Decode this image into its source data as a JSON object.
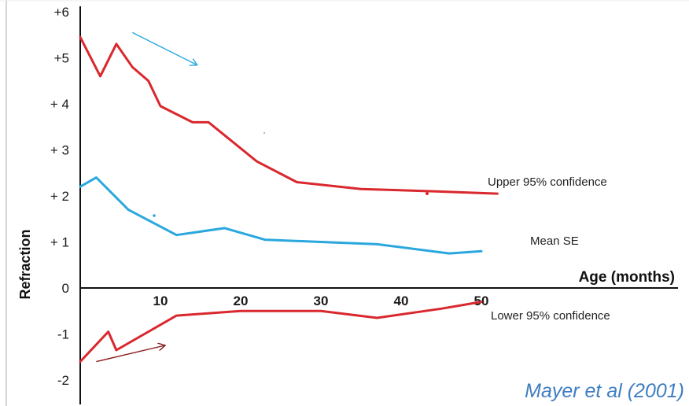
{
  "chart_data": {
    "type": "line",
    "xlabel": "Age (months)",
    "ylabel": "Refraction",
    "xlim": [
      0,
      55
    ],
    "ylim": [
      -2.3,
      6.1
    ],
    "x_ticks": [
      10,
      20,
      30,
      40,
      50
    ],
    "y_ticks": [
      {
        "value": 6,
        "label": "+6"
      },
      {
        "value": 5,
        "label": "+5"
      },
      {
        "value": 4,
        "label": "+ 4"
      },
      {
        "value": 3,
        "label": "+ 3"
      },
      {
        "value": 2,
        "label": "+ 2"
      },
      {
        "value": 1,
        "label": "+ 1"
      },
      {
        "value": 0,
        "label": "0"
      },
      {
        "value": -1,
        "label": "-1"
      },
      {
        "value": -2,
        "label": "-2"
      }
    ],
    "series": [
      {
        "name": "Upper 95% confidence",
        "color": "#d9282e",
        "x": [
          0,
          2.5,
          4.5,
          6.5,
          8.5,
          10,
          14,
          16,
          22,
          27,
          35,
          44,
          52
        ],
        "y": [
          5.45,
          4.6,
          5.3,
          4.8,
          4.5,
          3.95,
          3.6,
          3.6,
          2.75,
          2.3,
          2.15,
          2.1,
          2.05
        ]
      },
      {
        "name": "Mean SE",
        "color": "#2aa7de",
        "x": [
          0,
          2,
          6,
          12,
          18,
          23,
          30,
          37,
          46,
          50
        ],
        "y": [
          2.2,
          2.4,
          1.7,
          1.15,
          1.3,
          1.05,
          1.0,
          0.95,
          0.75,
          0.8
        ]
      },
      {
        "name": "Lower 95% confidence",
        "color": "#d9282e",
        "x": [
          0,
          3.5,
          4.5,
          12,
          20,
          30,
          37,
          45,
          50
        ],
        "y": [
          -1.6,
          -0.95,
          -1.35,
          -0.6,
          -0.5,
          -0.5,
          -0.65,
          -0.45,
          -0.3
        ]
      }
    ],
    "annotations": [
      {
        "type": "arrow",
        "color": "#2aa7de",
        "from": [
          6.5,
          5.55
        ],
        "to": [
          14.5,
          4.85
        ]
      },
      {
        "type": "arrow",
        "color": "#8b1a1a",
        "from": [
          2,
          -1.6
        ],
        "to": [
          10.5,
          -1.25
        ]
      }
    ],
    "citation": {
      "text": "Mayer et al (2001)",
      "color": "#3f7dc2"
    }
  }
}
